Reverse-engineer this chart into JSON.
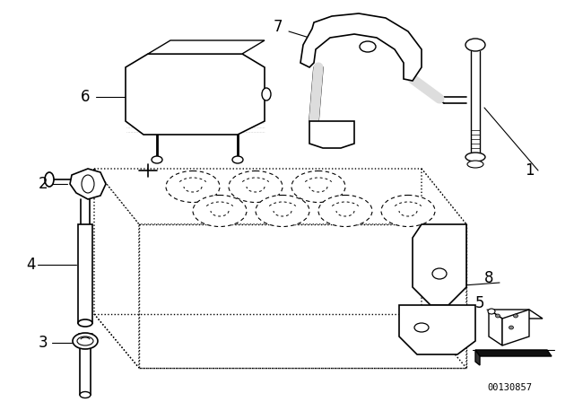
{
  "bg_color": "#ffffff",
  "line_color": "#000000",
  "part_number": "00130857",
  "fig_width": 6.4,
  "fig_height": 4.48,
  "dpi": 100
}
